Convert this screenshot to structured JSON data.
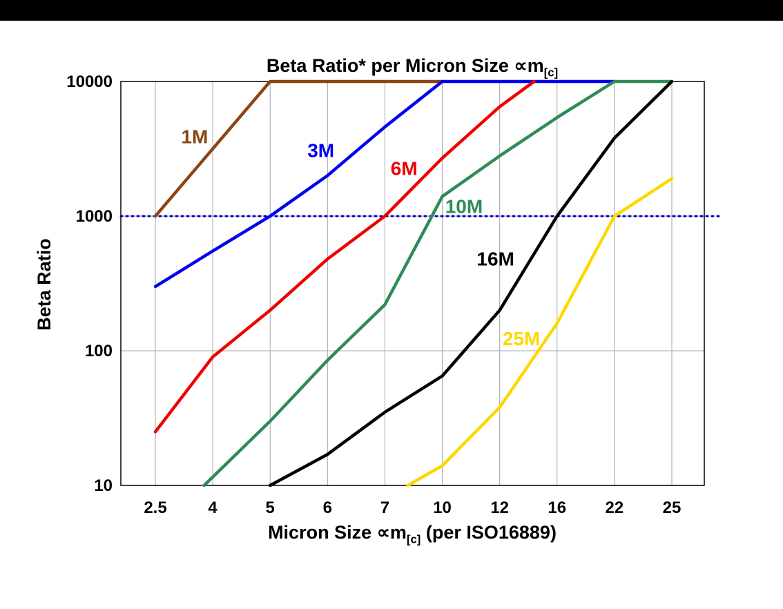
{
  "chart_data": {
    "type": "line",
    "title": {
      "prefix": "Beta Ratio* per Micron Size ",
      "symbol": "∝m",
      "sub": "[c]"
    },
    "xlabel": {
      "prefix": "Micron Size ",
      "symbol": "∝m",
      "sub": "[c]",
      "suffix": " (per ISO16889)"
    },
    "ylabel": "Beta Ratio",
    "x_categories": [
      "2.5",
      "4",
      "5",
      "6",
      "7",
      "10",
      "12",
      "16",
      "22",
      "25"
    ],
    "y_ticks": [
      "10",
      "100",
      "1000",
      "10000"
    ],
    "y_scale": "log",
    "ylim": [
      10,
      10000
    ],
    "grid": true,
    "legend_position": "inline-labels",
    "reference_line": {
      "value": 1000,
      "color": "#0000cc",
      "style": "dotted"
    },
    "series": [
      {
        "name": "1M",
        "color": "#8B4513",
        "label_pos": [
          0.45,
          3800
        ],
        "points": [
          [
            0,
            1000
          ],
          [
            2,
            10000
          ],
          [
            5,
            10000
          ]
        ]
      },
      {
        "name": "3M",
        "color": "#0000ee",
        "label_pos": [
          2.65,
          3000
        ],
        "points": [
          [
            0,
            300
          ],
          [
            1,
            550
          ],
          [
            2,
            1000
          ],
          [
            3,
            2000
          ],
          [
            4,
            4600
          ],
          [
            5,
            10000
          ],
          [
            8,
            10000
          ]
        ]
      },
      {
        "name": "6M",
        "color": "#ee0000",
        "label_pos": [
          4.1,
          2200
        ],
        "points": [
          [
            0,
            25
          ],
          [
            1,
            90
          ],
          [
            2,
            200
          ],
          [
            3,
            480
          ],
          [
            4,
            1000
          ],
          [
            5,
            2700
          ],
          [
            6,
            6500
          ],
          [
            6.6,
            10000
          ]
        ]
      },
      {
        "name": "10M",
        "color": "#2e8b57",
        "label_pos": [
          5.05,
          1150
        ],
        "points": [
          [
            0.85,
            10
          ],
          [
            2,
            30
          ],
          [
            3,
            85
          ],
          [
            4,
            220
          ],
          [
            5,
            1400
          ],
          [
            6,
            2800
          ],
          [
            7,
            5400
          ],
          [
            8,
            10000
          ],
          [
            9,
            10000
          ]
        ]
      },
      {
        "name": "16M",
        "color": "#000000",
        "label_pos": [
          5.6,
          470
        ],
        "points": [
          [
            2,
            10
          ],
          [
            3,
            17
          ],
          [
            4,
            35
          ],
          [
            5,
            65
          ],
          [
            6,
            200
          ],
          [
            7,
            1000
          ],
          [
            8,
            3800
          ],
          [
            9,
            10000
          ]
        ]
      },
      {
        "name": "25M",
        "color": "#ffd700",
        "label_pos": [
          6.05,
          120
        ],
        "points": [
          [
            4.4,
            10
          ],
          [
            5,
            14
          ],
          [
            6,
            38
          ],
          [
            7,
            160
          ],
          [
            8,
            1000
          ],
          [
            9,
            1900
          ]
        ]
      }
    ]
  }
}
